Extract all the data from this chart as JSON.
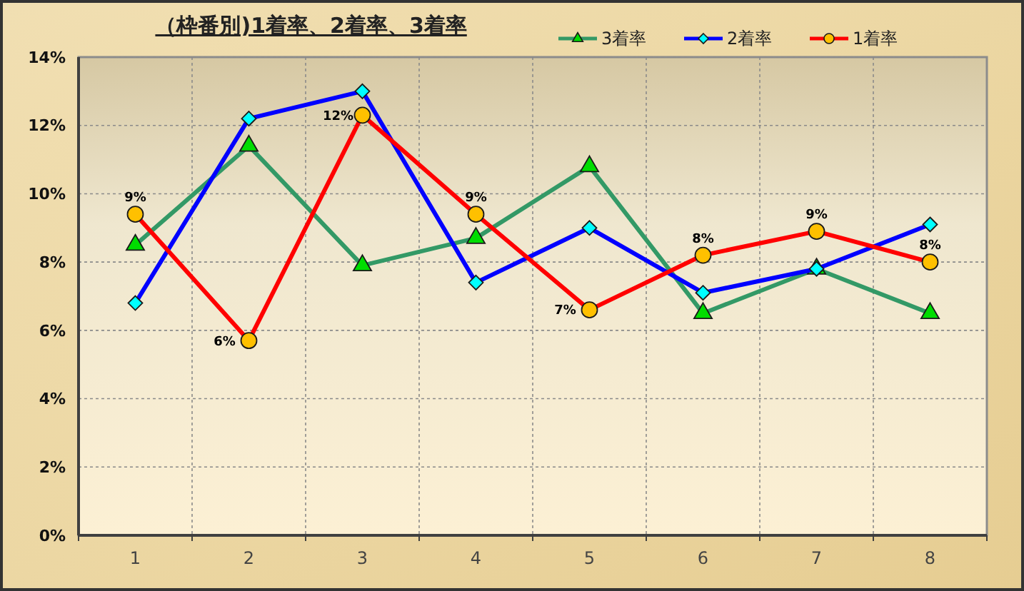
{
  "chart_data": {
    "type": "line",
    "title": "（枠番別)1着率、2着率、3着率",
    "categories": [
      "1",
      "2",
      "3",
      "4",
      "5",
      "6",
      "7",
      "8"
    ],
    "ylim": [
      0,
      14
    ],
    "yticks": [
      {
        "value": 0,
        "label": "0%"
      },
      {
        "value": 2,
        "label": "2%"
      },
      {
        "value": 4,
        "label": "4%"
      },
      {
        "value": 6,
        "label": "6%"
      },
      {
        "value": 8,
        "label": "8%"
      },
      {
        "value": 10,
        "label": "10%"
      },
      {
        "value": 12,
        "label": "12%"
      },
      {
        "value": 14,
        "label": "14%"
      }
    ],
    "grid": true,
    "legend": "top right",
    "line_style": "solid",
    "series": [
      {
        "name": "3着率",
        "color": "#339966",
        "marker": "triangle",
        "values": [
          8.5,
          11.4,
          7.9,
          8.7,
          10.8,
          6.5,
          7.8,
          6.5
        ]
      },
      {
        "name": "2着率",
        "color": "#0000ff",
        "marker": "diamond",
        "values": [
          6.8,
          12.2,
          13.0,
          7.4,
          9.0,
          7.1,
          7.8,
          9.1
        ]
      },
      {
        "name": "1着率",
        "color": "#ff0000",
        "marker": "circle",
        "values": [
          9.4,
          5.7,
          12.3,
          9.4,
          6.6,
          8.2,
          8.9,
          8.0
        ],
        "value_labels": [
          "9%",
          "6%",
          "12%",
          "9%",
          "7%",
          "8%",
          "9%",
          "8%"
        ]
      }
    ]
  }
}
